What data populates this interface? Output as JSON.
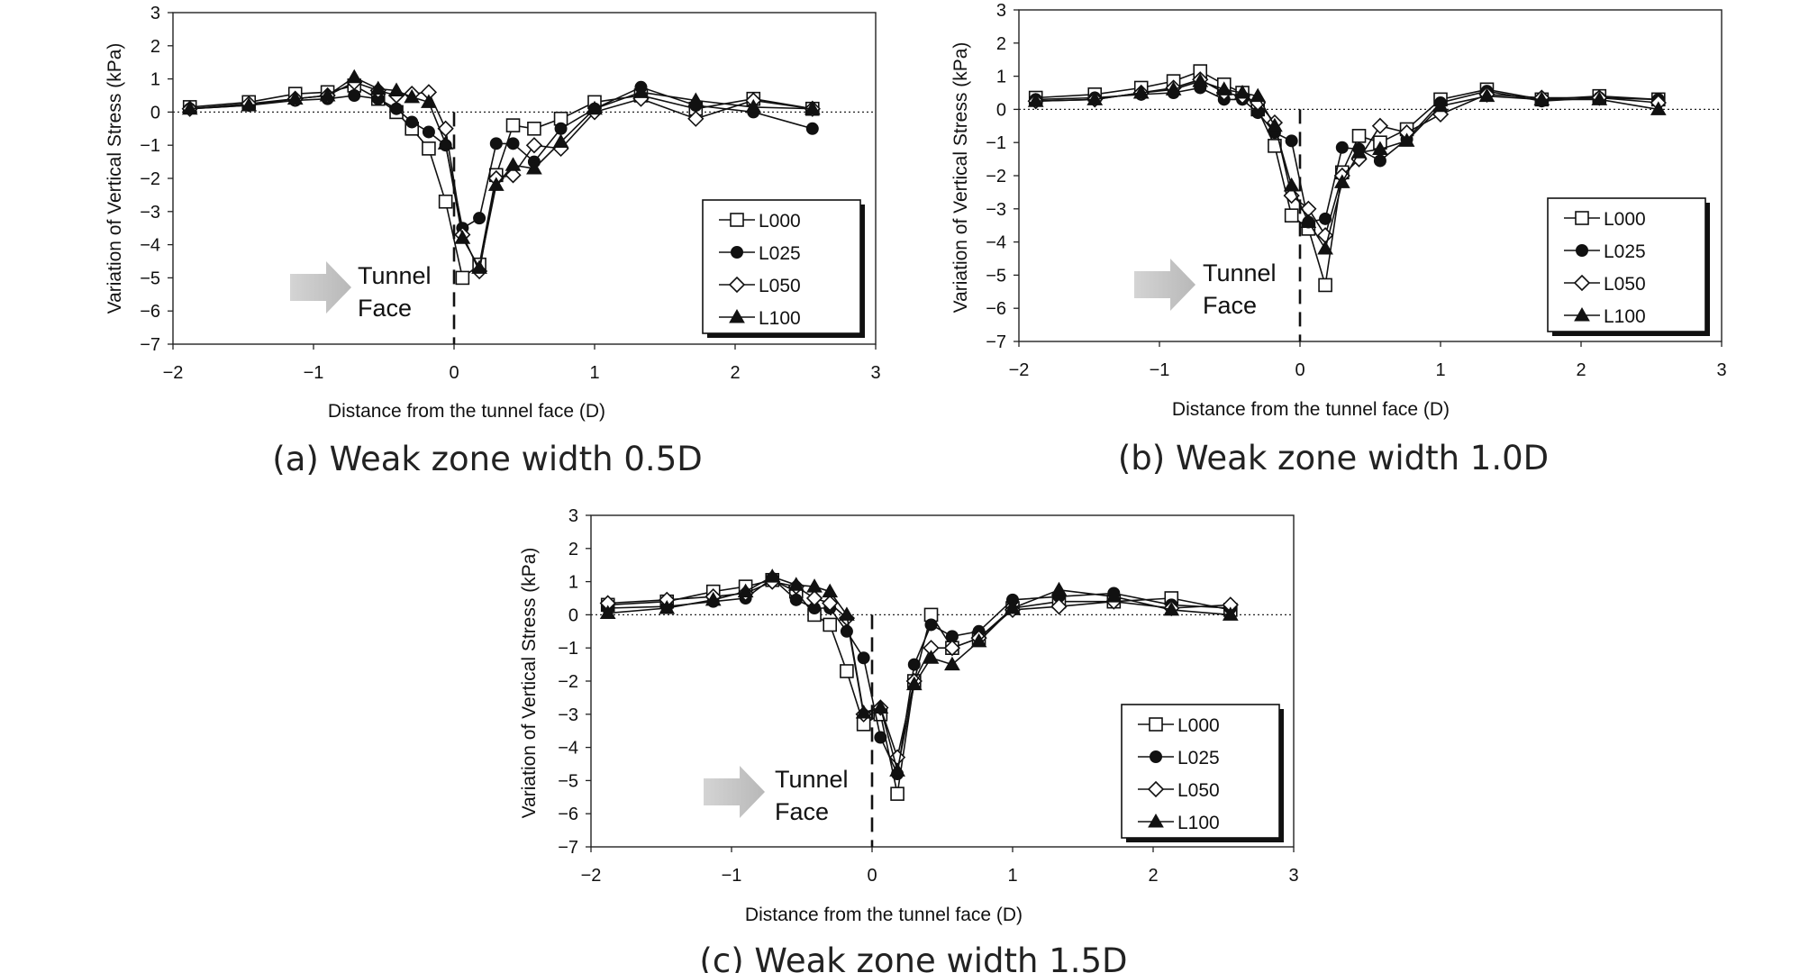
{
  "chart_data": [
    {
      "type": "line",
      "caption": "(a) Weak zone width 0.5D",
      "xlabel": "Distance from the tunnel face (D)",
      "ylabel": "Variation of  Vertical Stress (kPa)",
      "xlim": [
        -2,
        3
      ],
      "ylim": [
        -7,
        3
      ],
      "xticks": [
        "−2",
        "−1",
        "0",
        "1",
        "2",
        "3"
      ],
      "yticks": [
        "3",
        "2",
        "1",
        "0",
        "−1",
        "−2",
        "−3",
        "−4",
        "−5",
        "−6",
        "−7"
      ],
      "annotation": [
        "Tunnel",
        "Face"
      ],
      "legend_position": "lower-right",
      "series": [
        {
          "name": "L000",
          "marker": "square-open",
          "x": [
            -1.88,
            -1.46,
            -1.13,
            -0.9,
            -0.71,
            -0.54,
            -0.41,
            -0.3,
            -0.18,
            -0.06,
            0.06,
            0.18,
            0.3,
            0.42,
            0.57,
            0.76,
            1.0,
            1.33,
            1.72,
            2.13,
            2.55
          ],
          "y": [
            0.15,
            0.3,
            0.55,
            0.6,
            0.8,
            0.4,
            0.0,
            -0.5,
            -1.1,
            -2.7,
            -5.0,
            -4.6,
            -1.9,
            -0.4,
            -0.5,
            -0.2,
            0.3,
            0.5,
            0.1,
            0.4,
            0.1
          ]
        },
        {
          "name": "L025",
          "marker": "circle-filled",
          "x": [
            -1.88,
            -1.46,
            -1.13,
            -0.9,
            -0.71,
            -0.54,
            -0.41,
            -0.3,
            -0.18,
            -0.06,
            0.06,
            0.18,
            0.3,
            0.42,
            0.57,
            0.76,
            1.0,
            1.33,
            1.72,
            2.13,
            2.55
          ],
          "y": [
            0.1,
            0.2,
            0.35,
            0.4,
            0.5,
            0.4,
            0.1,
            -0.3,
            -0.6,
            -1.0,
            -3.5,
            -3.2,
            -0.95,
            -0.95,
            -1.5,
            -0.5,
            0.1,
            0.75,
            0.2,
            0.0,
            -0.5
          ]
        },
        {
          "name": "L050",
          "marker": "diamond-open",
          "x": [
            -1.88,
            -1.46,
            -1.13,
            -0.9,
            -0.71,
            -0.54,
            -0.41,
            -0.3,
            -0.18,
            -0.06,
            0.06,
            0.18,
            0.3,
            0.42,
            0.57,
            0.76,
            1.0,
            1.33,
            1.72,
            2.13,
            2.55
          ],
          "y": [
            0.1,
            0.25,
            0.4,
            0.5,
            0.9,
            0.65,
            0.5,
            0.55,
            0.6,
            -0.5,
            -3.7,
            -4.8,
            -2.0,
            -1.9,
            -1.0,
            -1.1,
            0.0,
            0.4,
            -0.2,
            0.35,
            0.1
          ]
        },
        {
          "name": "L100",
          "marker": "triangle-filled",
          "x": [
            -1.88,
            -1.46,
            -1.13,
            -0.9,
            -0.71,
            -0.54,
            -0.41,
            -0.3,
            -0.18,
            -0.06,
            0.06,
            0.18,
            0.3,
            0.42,
            0.57,
            0.76,
            1.0,
            1.33,
            1.72,
            2.13,
            2.55
          ],
          "y": [
            0.1,
            0.2,
            0.4,
            0.5,
            1.05,
            0.7,
            0.65,
            0.45,
            0.3,
            -0.95,
            -3.8,
            -4.7,
            -2.2,
            -1.6,
            -1.7,
            -0.9,
            0.1,
            0.6,
            0.35,
            0.15,
            0.1
          ]
        }
      ]
    },
    {
      "type": "line",
      "caption": "(b) Weak zone width 1.0D",
      "xlabel": "Distance from the tunnel face (D)",
      "ylabel": "Variation of  Vertical Stress (kPa)",
      "xlim": [
        -2,
        3
      ],
      "ylim": [
        -7,
        3
      ],
      "xticks": [
        "−2",
        "−1",
        "0",
        "1",
        "2",
        "3"
      ],
      "yticks": [
        "3",
        "2",
        "1",
        "0",
        "−1",
        "−2",
        "−3",
        "−4",
        "−5",
        "−6",
        "−7"
      ],
      "annotation": [
        "Tunnel",
        "Face"
      ],
      "legend_position": "lower-right",
      "series": [
        {
          "name": "L000",
          "marker": "square-open",
          "x": [
            -1.88,
            -1.46,
            -1.13,
            -0.9,
            -0.71,
            -0.54,
            -0.41,
            -0.3,
            -0.18,
            -0.06,
            0.06,
            0.18,
            0.3,
            0.42,
            0.57,
            0.76,
            1.0,
            1.33,
            1.72,
            2.13,
            2.55
          ],
          "y": [
            0.35,
            0.45,
            0.65,
            0.85,
            1.15,
            0.75,
            0.5,
            0.0,
            -1.1,
            -3.2,
            -3.6,
            -5.3,
            -1.9,
            -0.8,
            -1.0,
            -0.6,
            0.3,
            0.6,
            0.3,
            0.4,
            0.3
          ]
        },
        {
          "name": "L025",
          "marker": "circle-filled",
          "x": [
            -1.88,
            -1.46,
            -1.13,
            -0.9,
            -0.71,
            -0.54,
            -0.41,
            -0.3,
            -0.18,
            -0.06,
            0.06,
            0.18,
            0.3,
            0.42,
            0.57,
            0.76,
            1.0,
            1.33,
            1.72,
            2.13,
            2.55
          ],
          "y": [
            0.3,
            0.35,
            0.45,
            0.5,
            0.65,
            0.3,
            0.3,
            -0.1,
            -0.7,
            -0.95,
            -3.4,
            -3.3,
            -1.15,
            -1.2,
            -1.55,
            -0.9,
            0.2,
            0.55,
            0.25,
            0.35,
            0.3
          ]
        },
        {
          "name": "L050",
          "marker": "diamond-open",
          "x": [
            -1.88,
            -1.46,
            -1.13,
            -0.9,
            -0.71,
            -0.54,
            -0.41,
            -0.3,
            -0.18,
            -0.06,
            0.06,
            0.18,
            0.3,
            0.42,
            0.57,
            0.76,
            1.0,
            1.33,
            1.72,
            2.13,
            2.55
          ],
          "y": [
            0.25,
            0.3,
            0.5,
            0.65,
            0.9,
            0.5,
            0.4,
            0.2,
            -0.4,
            -2.6,
            -3.0,
            -3.8,
            -2.0,
            -1.5,
            -0.5,
            -0.7,
            -0.15,
            0.45,
            0.35,
            0.35,
            0.2
          ]
        },
        {
          "name": "L100",
          "marker": "triangle-filled",
          "x": [
            -1.88,
            -1.46,
            -1.13,
            -0.9,
            -0.71,
            -0.54,
            -0.41,
            -0.3,
            -0.18,
            -0.06,
            0.06,
            0.18,
            0.3,
            0.42,
            0.57,
            0.76,
            1.0,
            1.33,
            1.72,
            2.13,
            2.55
          ],
          "y": [
            0.25,
            0.3,
            0.5,
            0.6,
            0.85,
            0.6,
            0.5,
            0.4,
            -0.5,
            -2.3,
            -3.4,
            -4.2,
            -2.2,
            -1.3,
            -1.2,
            -0.95,
            0.1,
            0.4,
            0.3,
            0.3,
            0.0
          ]
        }
      ]
    },
    {
      "type": "line",
      "caption": "(c) Weak zone width 1.5D",
      "xlabel": "Distance from the tunnel face (D)",
      "ylabel": "Variation of  Vertical Stress (kPa)",
      "xlim": [
        -2,
        3
      ],
      "ylim": [
        -7,
        3
      ],
      "xticks": [
        "−2",
        "−1",
        "0",
        "1",
        "2",
        "3"
      ],
      "yticks": [
        "3",
        "2",
        "1",
        "0",
        "−1",
        "−2",
        "−3",
        "−4",
        "−5",
        "−6",
        "−7"
      ],
      "annotation": [
        "Tunnel",
        "Face"
      ],
      "legend_position": "lower-right",
      "series": [
        {
          "name": "L000",
          "marker": "square-open",
          "x": [
            -1.88,
            -1.46,
            -1.13,
            -0.9,
            -0.71,
            -0.54,
            -0.41,
            -0.3,
            -0.18,
            -0.06,
            0.06,
            0.18,
            0.3,
            0.42,
            0.57,
            0.76,
            1.0,
            1.33,
            1.72,
            2.13,
            2.55
          ],
          "y": [
            0.3,
            0.4,
            0.7,
            0.85,
            1.05,
            0.7,
            0.0,
            -0.3,
            -1.7,
            -3.3,
            -3.0,
            -5.4,
            -2.0,
            0.0,
            -1.0,
            -0.7,
            0.2,
            0.4,
            0.4,
            0.5,
            0.15
          ]
        },
        {
          "name": "L025",
          "marker": "circle-filled",
          "x": [
            -1.88,
            -1.46,
            -1.13,
            -0.9,
            -0.71,
            -0.54,
            -0.41,
            -0.3,
            -0.18,
            -0.06,
            0.06,
            0.18,
            0.3,
            0.42,
            0.57,
            0.76,
            1.0,
            1.33,
            1.72,
            2.13,
            2.55
          ],
          "y": [
            0.2,
            0.25,
            0.4,
            0.5,
            1.1,
            0.45,
            0.2,
            0.2,
            -0.5,
            -1.3,
            -3.7,
            -4.8,
            -1.5,
            -0.3,
            -0.65,
            -0.5,
            0.45,
            0.55,
            0.65,
            0.3,
            0.2
          ]
        },
        {
          "name": "L050",
          "marker": "diamond-open",
          "x": [
            -1.88,
            -1.46,
            -1.13,
            -0.9,
            -0.71,
            -0.54,
            -0.41,
            -0.3,
            -0.18,
            -0.06,
            0.06,
            0.18,
            0.3,
            0.42,
            0.57,
            0.76,
            1.0,
            1.33,
            1.72,
            2.13,
            2.55
          ],
          "y": [
            0.35,
            0.45,
            0.55,
            0.65,
            1.0,
            0.85,
            0.5,
            0.35,
            -0.1,
            -3.0,
            -2.8,
            -4.3,
            -2.0,
            -1.0,
            -1.0,
            -0.7,
            0.15,
            0.25,
            0.4,
            0.2,
            0.3
          ]
        },
        {
          "name": "L100",
          "marker": "triangle-filled",
          "x": [
            -1.88,
            -1.46,
            -1.13,
            -0.9,
            -0.71,
            -0.54,
            -0.41,
            -0.3,
            -0.18,
            -0.06,
            0.06,
            0.18,
            0.3,
            0.42,
            0.57,
            0.76,
            1.0,
            1.33,
            1.72,
            2.13,
            2.55
          ],
          "y": [
            0.05,
            0.2,
            0.45,
            0.7,
            1.15,
            0.9,
            0.85,
            0.7,
            0.0,
            -2.95,
            -2.8,
            -4.7,
            -2.1,
            -1.3,
            -1.5,
            -0.8,
            0.2,
            0.75,
            0.55,
            0.15,
            0.0
          ]
        }
      ]
    }
  ]
}
